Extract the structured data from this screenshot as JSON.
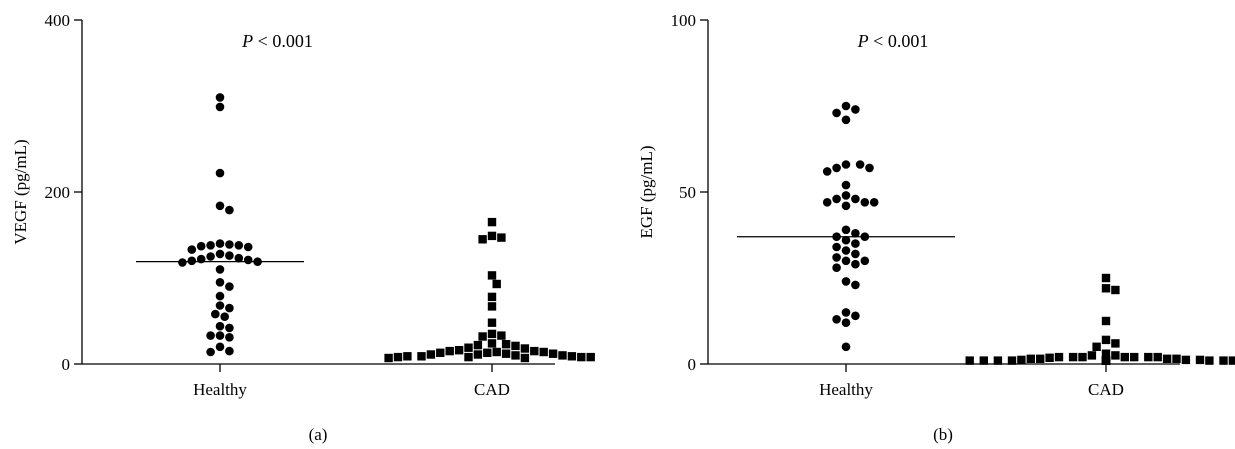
{
  "chart_data": [
    {
      "type": "scatter",
      "panel_label": "(a)",
      "ylabel": "VEGF (pg/mL)",
      "ylim": [
        0,
        400
      ],
      "yticks": [
        0,
        200,
        400
      ],
      "categories": [
        "Healthy",
        "CAD"
      ],
      "annotation": {
        "p": "P",
        "rest": " < 0.001"
      },
      "grid": false,
      "series": [
        {
          "category": "Healthy",
          "marker": "circle",
          "median": 119,
          "values": [
            310,
            299,
            222,
            184,
            179,
            140,
            139,
            138,
            138,
            137,
            136,
            133,
            128,
            126,
            125,
            123,
            122,
            121,
            120,
            119,
            118,
            110,
            95,
            90,
            79,
            68,
            65,
            58,
            55,
            44,
            42,
            33,
            33,
            31,
            20,
            15,
            14
          ]
        },
        {
          "category": "CAD",
          "marker": "square",
          "median": 14,
          "values": [
            165,
            149,
            147,
            145,
            103,
            93,
            78,
            67,
            48,
            35,
            33,
            32,
            24,
            23,
            22,
            21,
            19,
            18,
            16,
            15,
            15,
            14,
            14,
            13,
            13,
            12,
            12,
            11,
            11,
            10,
            10,
            9,
            9,
            9,
            8,
            8,
            8,
            8,
            7,
            7
          ]
        }
      ]
    },
    {
      "type": "scatter",
      "panel_label": "(b)",
      "ylabel": "EGF (pg/mL)",
      "ylim": [
        0,
        100
      ],
      "yticks": [
        0,
        50,
        100
      ],
      "categories": [
        "Healthy",
        "CAD"
      ],
      "annotation": {
        "p": "P",
        "rest": " < 0.001"
      },
      "grid": false,
      "series": [
        {
          "category": "Healthy",
          "marker": "circle",
          "median": 37,
          "values": [
            75,
            74,
            73,
            71,
            58,
            58,
            57,
            57,
            56,
            52,
            49,
            48,
            48,
            47,
            47,
            47,
            46,
            39,
            38,
            37,
            37,
            36,
            35,
            34,
            33,
            32,
            31,
            30,
            30,
            29,
            28,
            24,
            23,
            15,
            14,
            13,
            12,
            5
          ]
        },
        {
          "category": "CAD",
          "marker": "square",
          "median": 1.5,
          "values": [
            25,
            22,
            21.5,
            12.5,
            7,
            6,
            5,
            3,
            2.5,
            2.5,
            2,
            2,
            2,
            2,
            2,
            2,
            2,
            1.8,
            1.5,
            1.5,
            1.5,
            1.5,
            1.2,
            1.2,
            1.2,
            1,
            1,
            1,
            1,
            1,
            1,
            1,
            1,
            1,
            1,
            1,
            1,
            1
          ]
        }
      ]
    }
  ]
}
